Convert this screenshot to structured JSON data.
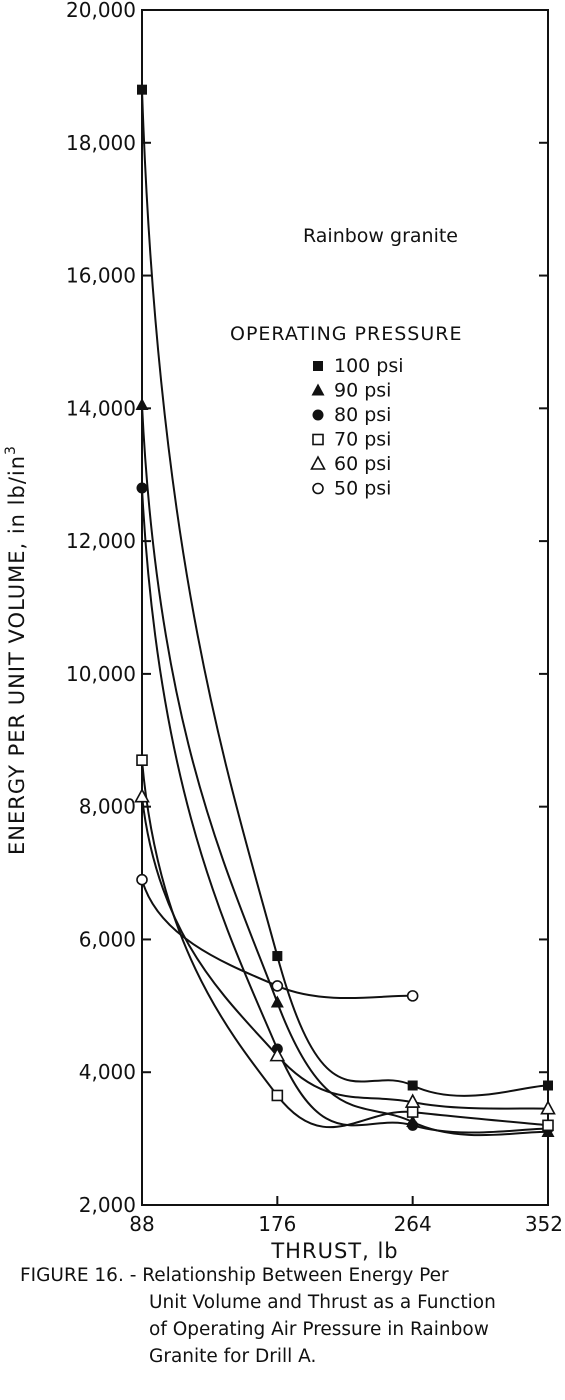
{
  "chart_data": {
    "type": "line",
    "xlabel": "THRUST, lb",
    "ylabel": "ENERGY PER UNIT VOLUME, in lb/in",
    "ylabel_superscript": "3",
    "x_ticks": [
      "88",
      "176",
      "264",
      "352"
    ],
    "y_ticks": [
      "2,000",
      "4,000",
      "6,000",
      "8,000",
      "10,000",
      "12,000",
      "14,000",
      "16,000",
      "18,000",
      "20,000"
    ],
    "xlim": [
      88,
      352
    ],
    "ylim": [
      2000,
      20000
    ],
    "grid": false,
    "annotation": "Rainbow granite",
    "legend_title": "OPERATING PRESSURE",
    "legend_position": "top-right",
    "series": [
      {
        "name": "100 psi",
        "marker": "filled-square",
        "x": [
          88,
          176,
          264,
          352
        ],
        "y": [
          18800,
          5750,
          3800,
          3800
        ]
      },
      {
        "name": "90 psi",
        "marker": "filled-triangle",
        "x": [
          88,
          176,
          264,
          352
        ],
        "y": [
          14050,
          5050,
          3250,
          3100
        ]
      },
      {
        "name": "80 psi",
        "marker": "filled-circle",
        "x": [
          88,
          176,
          264,
          352
        ],
        "y": [
          12800,
          4350,
          3200,
          3150
        ]
      },
      {
        "name": "70 psi",
        "marker": "open-square",
        "x": [
          88,
          176,
          264,
          352
        ],
        "y": [
          8700,
          3650,
          3400,
          3200
        ]
      },
      {
        "name": "60 psi",
        "marker": "open-triangle",
        "x": [
          88,
          176,
          264,
          352
        ],
        "y": [
          8150,
          4250,
          3550,
          3450
        ]
      },
      {
        "name": "50 psi",
        "marker": "open-circle",
        "x": [
          88,
          176,
          264
        ],
        "y": [
          6900,
          5300,
          5150
        ]
      }
    ]
  },
  "caption": {
    "line1": "FIGURE 16. - Relationship Between Energy Per",
    "line2": "Unit Volume and Thrust as a Function",
    "line3": "of Operating Air Pressure in Rainbow",
    "line4": "Granite for Drill A."
  }
}
